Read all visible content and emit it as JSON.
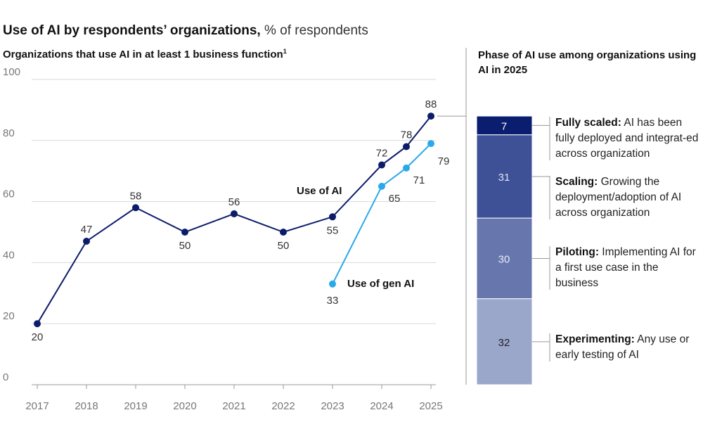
{
  "title": {
    "bold": "Use of AI by respondents’ organizations,",
    "unit": "% of respondents"
  },
  "subtitle": {
    "text": "Organizations that use AI in at least 1 business function",
    "footnote": "1"
  },
  "colors": {
    "ai": "#0c1c6b",
    "gen_ai": "#2aa9ea",
    "grid": "#d9d9d9",
    "axis_text": "#777777"
  },
  "chart_data": [
    {
      "type": "line",
      "ylim": [
        0,
        100
      ],
      "yticks": [
        0,
        20,
        40,
        60,
        80,
        100
      ],
      "xticks": [
        "2017",
        "2018",
        "2019",
        "2020",
        "2021",
        "2022",
        "2023",
        "2024",
        "2025"
      ],
      "grid": true,
      "series": [
        {
          "name": "Use of AI",
          "x": [
            2017,
            2018,
            2019,
            2020,
            2021,
            2022,
            2023,
            2024,
            2024.5,
            2025
          ],
          "values": [
            20,
            47,
            58,
            50,
            56,
            50,
            55,
            72,
            78,
            88
          ]
        },
        {
          "name": "Use of gen AI",
          "x": [
            2023,
            2024,
            2024.5,
            2025
          ],
          "values": [
            33,
            65,
            71,
            79
          ]
        }
      ]
    },
    {
      "type": "bar",
      "stacked": true,
      "title": "Phase of AI use among organizations using AI in 2025",
      "segments": [
        {
          "value": 7,
          "label": "Fully scaled:",
          "desc": "AI has been fully deployed and integrat-ed across organization",
          "color": "#0b1d6e",
          "text_color": "#ffffff"
        },
        {
          "value": 31,
          "label": "Scaling:",
          "desc": "Growing the deployment/adoption of AI across organization",
          "color": "#3f5196",
          "text_color": "#dfe3f1"
        },
        {
          "value": 30,
          "label": "Piloting:",
          "desc": "Implementing AI for a first use case in the business",
          "color": "#6777ae",
          "text_color": "#e8ebf5"
        },
        {
          "value": 32,
          "label": "Experimenting:",
          "desc": "Any use or early testing of AI",
          "color": "#9ba6cb",
          "text_color": "#222222"
        }
      ]
    }
  ]
}
